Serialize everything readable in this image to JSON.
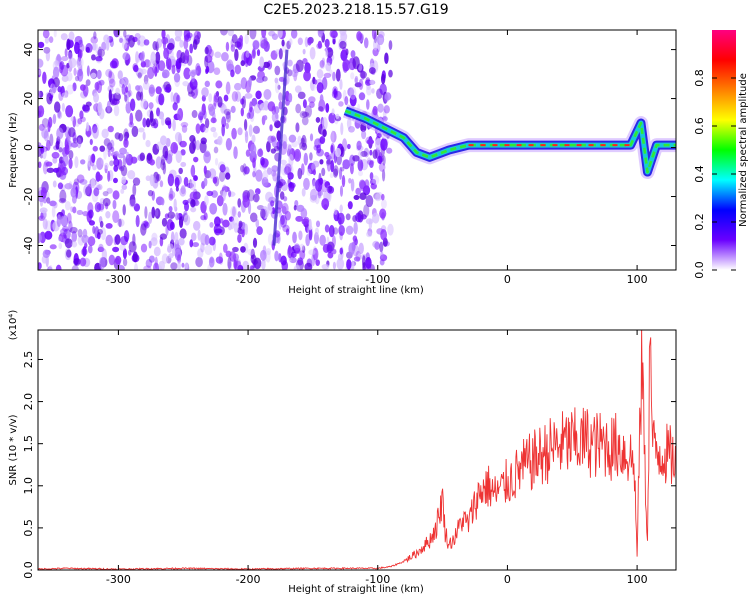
{
  "chart_data": [
    {
      "type": "heatmap",
      "title": "C2E5.2023.218.15.57.G19",
      "xlabel": "Height of straight line (km)",
      "ylabel": "Frequency (Hz)",
      "xlim": [
        -362,
        130
      ],
      "ylim": [
        -50,
        48
      ],
      "xticks": [
        -300,
        -200,
        -100,
        0,
        100
      ],
      "yticks": [
        -40,
        -20,
        0,
        20,
        40
      ],
      "colorbar": {
        "label": "Normalized spectral amplitude",
        "range": [
          0,
          1
        ],
        "ticks": [
          0.0,
          0.2,
          0.4,
          0.6,
          0.8
        ],
        "colormap": [
          "#ffffff",
          "#6a00ff",
          "#0000ff",
          "#00ffff",
          "#00ff00",
          "#ffff00",
          "#ff8000",
          "#ff0000",
          "#ff0080"
        ]
      },
      "noise_region_x": [
        -362,
        -90
      ],
      "signal_track": [
        {
          "x": -170,
          "y": 40
        },
        {
          "x": -180,
          "y": -40
        },
        {
          "x": -125,
          "y": 15
        },
        {
          "x": -110,
          "y": 12
        },
        {
          "x": -95,
          "y": 8
        },
        {
          "x": -80,
          "y": 4
        },
        {
          "x": -70,
          "y": -2
        },
        {
          "x": -60,
          "y": -4
        },
        {
          "x": -45,
          "y": -1
        },
        {
          "x": -30,
          "y": 1
        },
        {
          "x": -10,
          "y": 1
        },
        {
          "x": 20,
          "y": 1
        },
        {
          "x": 60,
          "y": 1
        },
        {
          "x": 95,
          "y": 1
        },
        {
          "x": 103,
          "y": 10
        },
        {
          "x": 108,
          "y": -10
        },
        {
          "x": 115,
          "y": 1
        },
        {
          "x": 130,
          "y": 1
        }
      ]
    },
    {
      "type": "line",
      "title": "",
      "xlabel": "Height of straight line (km)",
      "ylabel": "SNR (10 * v/v)",
      "yscale_label": "(x10⁴)",
      "xlim": [
        -362,
        130
      ],
      "ylim": [
        0.0,
        2.85
      ],
      "xticks": [
        -300,
        -200,
        -100,
        0,
        100
      ],
      "yticks": [
        0.0,
        0.5,
        1.0,
        1.5,
        2.0,
        2.5
      ],
      "color": "#ee3333",
      "series": [
        {
          "x": [
            -362,
            -340,
            -300,
            -250,
            -200,
            -150,
            -100,
            -90,
            -80,
            -70,
            -60,
            -55,
            -50,
            -48,
            -45,
            -40,
            -35,
            -30,
            -25,
            -20,
            -15,
            -10,
            -5,
            0,
            5,
            10,
            15,
            20,
            25,
            30,
            35,
            40,
            45,
            50,
            55,
            60,
            65,
            70,
            75,
            80,
            85,
            90,
            95,
            98,
            100,
            102,
            104,
            106,
            108,
            110,
            112,
            115,
            120,
            125,
            130
          ],
          "y": [
            0.01,
            0.02,
            0.01,
            0.02,
            0.01,
            0.02,
            0.02,
            0.04,
            0.1,
            0.2,
            0.35,
            0.5,
            0.85,
            0.45,
            0.3,
            0.4,
            0.6,
            0.55,
            0.8,
            0.95,
            1.0,
            0.9,
            0.95,
            1.05,
            1.1,
            1.2,
            1.25,
            1.3,
            1.35,
            1.4,
            1.45,
            1.48,
            1.5,
            1.52,
            1.5,
            1.55,
            1.5,
            1.48,
            1.5,
            1.45,
            1.48,
            1.4,
            1.35,
            1.2,
            0.15,
            1.6,
            2.55,
            1.2,
            0.35,
            2.85,
            1.45,
            1.42,
            1.4,
            1.35,
            1.32
          ]
        }
      ]
    }
  ]
}
